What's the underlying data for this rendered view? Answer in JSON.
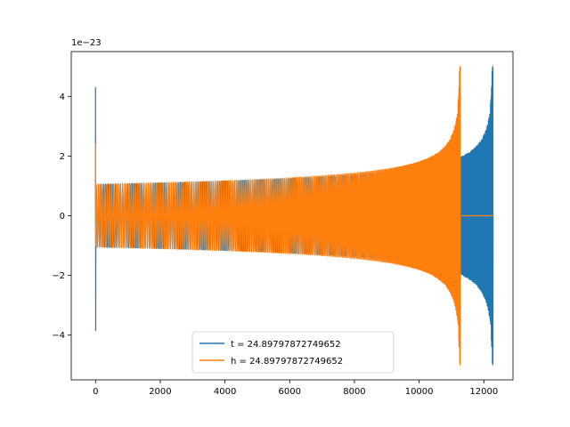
{
  "chart_data": {
    "type": "line",
    "title": "",
    "xlabel": "",
    "ylabel": "",
    "x_range": [
      -750,
      12900
    ],
    "y_range": [
      -5.5,
      5.5
    ],
    "y_offset_label": "1e−23",
    "x_ticks": [
      0,
      2000,
      4000,
      6000,
      8000,
      10000,
      12000
    ],
    "y_ticks": [
      -4,
      -2,
      0,
      2,
      4
    ],
    "grid": false,
    "legend_position": "lower-center",
    "series": [
      {
        "name": "t = 24.89797872749652",
        "color": "#1f77b4",
        "signal": {
          "kind": "inspiral-chirp",
          "start_x": 0,
          "merger_x": 12280,
          "end_x": 12300,
          "initial_amplitude": 1.05,
          "peak_amplitude": 5.0,
          "peak_min": -4.9,
          "start_spike": [
            4.3,
            -3.85
          ]
        }
      },
      {
        "name": "h = 24.89797872749652",
        "color": "#ff7f0e",
        "signal": {
          "kind": "inspiral-chirp",
          "start_x": 0,
          "merger_x": 11270,
          "end_x": 12300,
          "initial_amplitude": 1.05,
          "peak_amplitude": 5.0,
          "peak_min": -4.9,
          "start_spike": [
            2.4,
            -1.0
          ]
        }
      }
    ]
  }
}
